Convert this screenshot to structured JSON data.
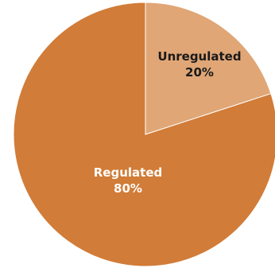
{
  "chart_data": {
    "type": "pie",
    "title": "",
    "slices": [
      {
        "label": "Unregulated",
        "value": 20,
        "value_label": "20%",
        "color": "#E0A676",
        "label_color": "#1a1a1a"
      },
      {
        "label": "Regulated",
        "value": 80,
        "value_label": "80%",
        "color": "#D17C38",
        "label_color": "#ffffff"
      }
    ],
    "start_angle_deg": 0,
    "direction": "clockwise",
    "legend": "none"
  }
}
